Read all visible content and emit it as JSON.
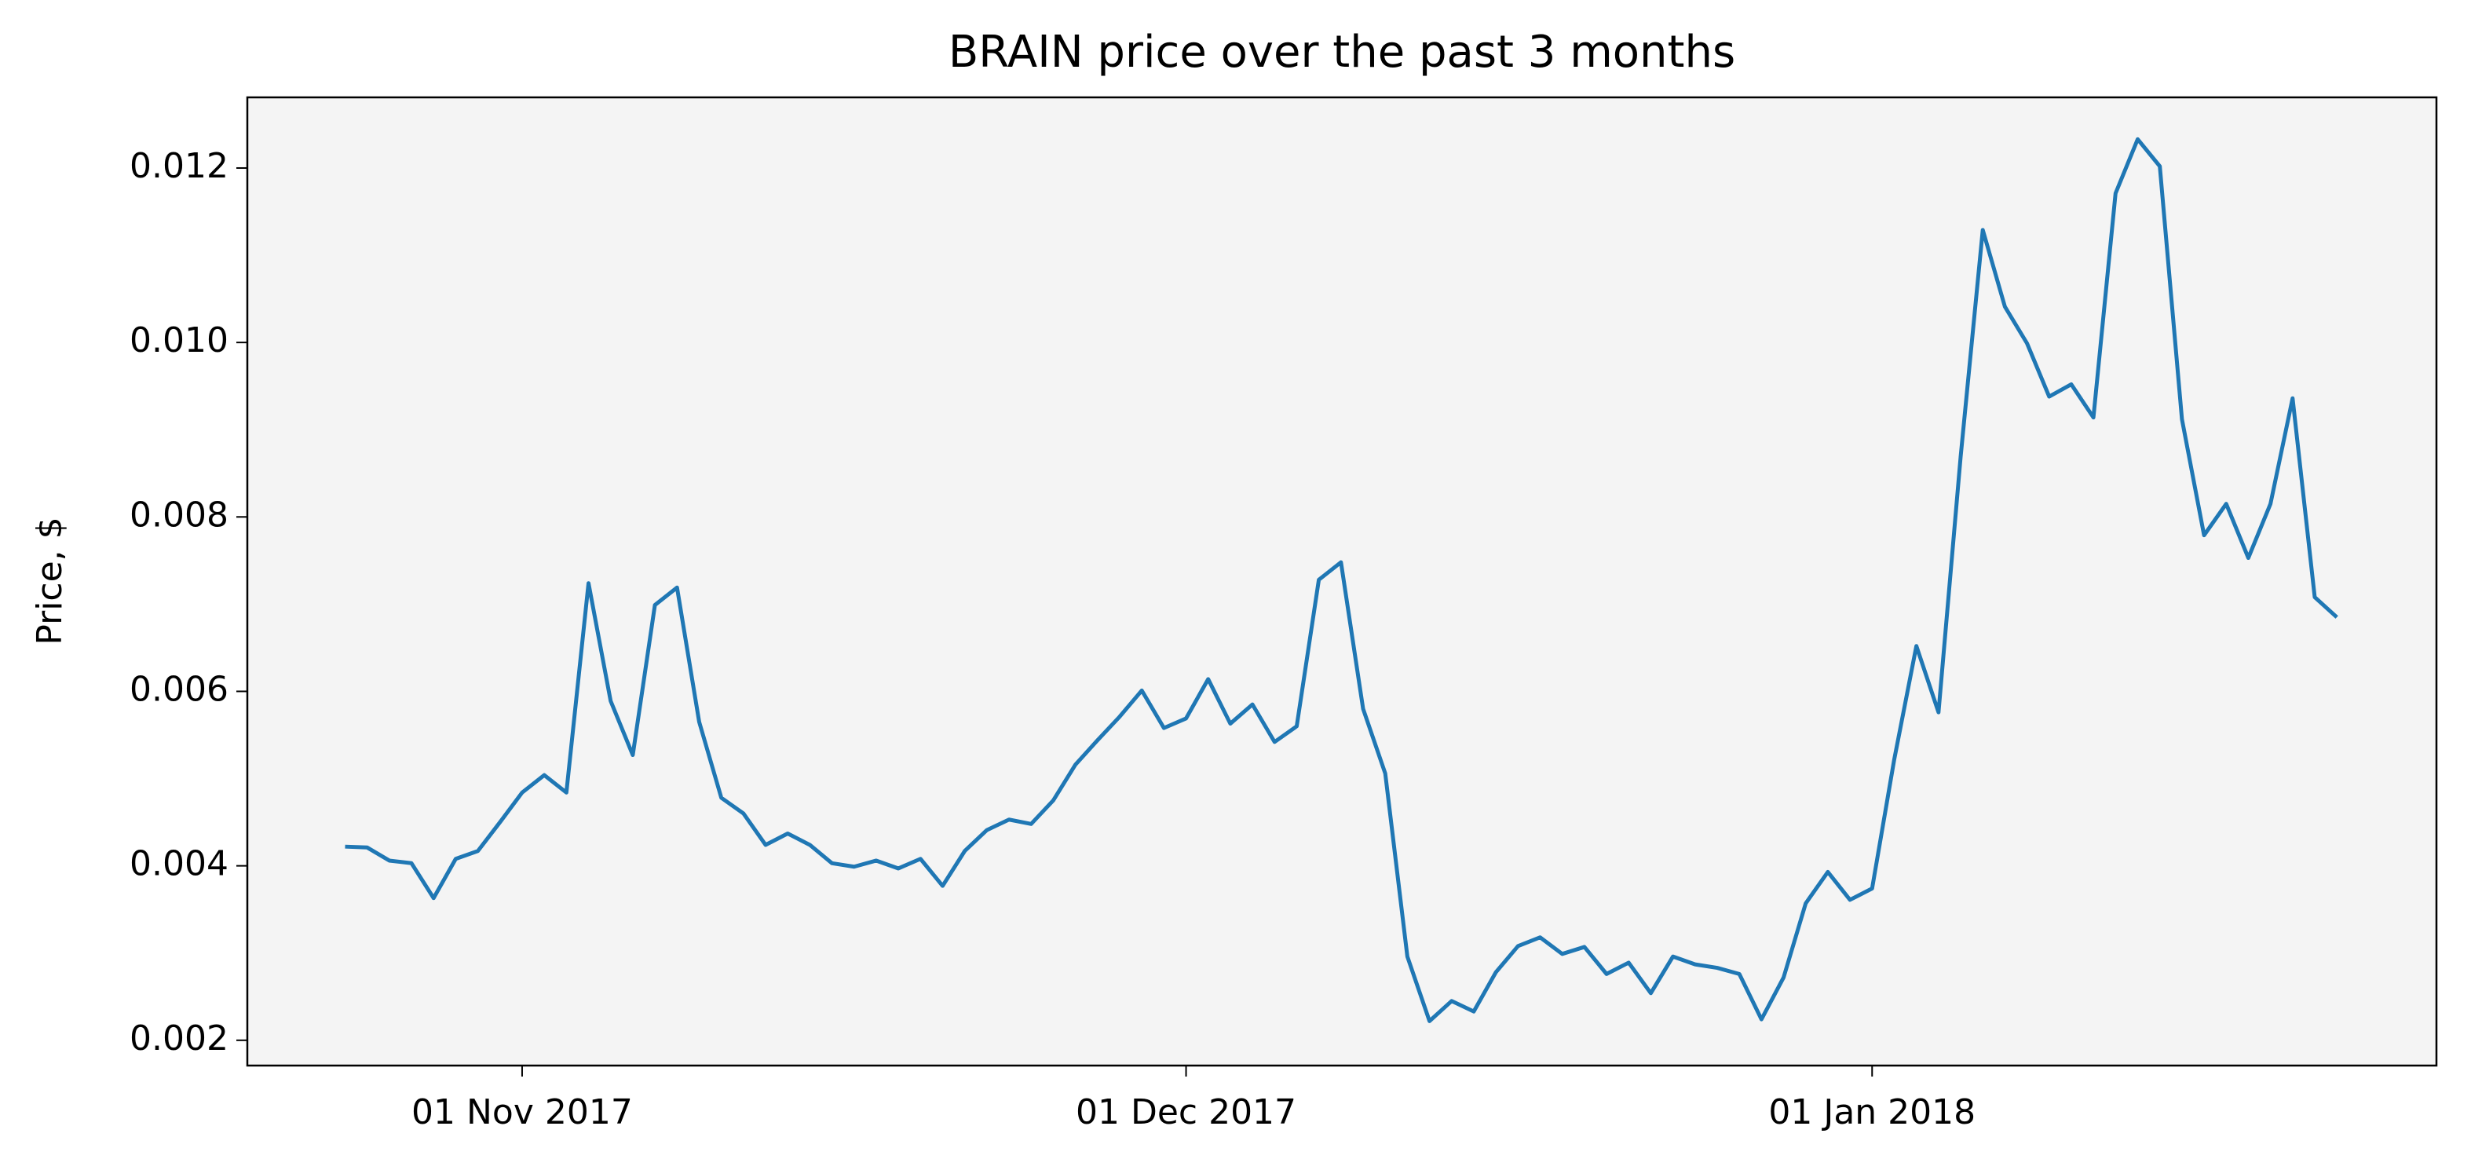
{
  "chart_data": {
    "type": "line",
    "title": "BRAIN price over the past 3 months",
    "ylabel": "Price, $",
    "x": [
      "2017-10-24",
      "2017-10-25",
      "2017-10-26",
      "2017-10-27",
      "2017-10-28",
      "2017-10-29",
      "2017-10-30",
      "2017-10-31",
      "2017-11-01",
      "2017-11-02",
      "2017-11-03",
      "2017-11-04",
      "2017-11-05",
      "2017-11-06",
      "2017-11-07",
      "2017-11-08",
      "2017-11-09",
      "2017-11-10",
      "2017-11-11",
      "2017-11-12",
      "2017-11-13",
      "2017-11-14",
      "2017-11-15",
      "2017-11-16",
      "2017-11-17",
      "2017-11-18",
      "2017-11-19",
      "2017-11-20",
      "2017-11-21",
      "2017-11-22",
      "2017-11-23",
      "2017-11-24",
      "2017-11-25",
      "2017-11-26",
      "2017-11-27",
      "2017-11-28",
      "2017-11-29",
      "2017-11-30",
      "2017-12-01",
      "2017-12-02",
      "2017-12-03",
      "2017-12-04",
      "2017-12-05",
      "2017-12-06",
      "2017-12-07",
      "2017-12-08",
      "2017-12-09",
      "2017-12-10",
      "2017-12-11",
      "2017-12-12",
      "2017-12-13",
      "2017-12-14",
      "2017-12-15",
      "2017-12-16",
      "2017-12-17",
      "2017-12-18",
      "2017-12-19",
      "2017-12-20",
      "2017-12-21",
      "2017-12-22",
      "2017-12-23",
      "2017-12-24",
      "2017-12-25",
      "2017-12-26",
      "2017-12-27",
      "2017-12-28",
      "2017-12-29",
      "2017-12-30",
      "2017-12-31",
      "2018-01-01",
      "2018-01-02",
      "2018-01-03",
      "2018-01-04",
      "2018-01-05",
      "2018-01-06",
      "2018-01-07",
      "2018-01-08",
      "2018-01-09",
      "2018-01-10",
      "2018-01-11",
      "2018-01-12",
      "2018-01-13",
      "2018-01-14",
      "2018-01-15",
      "2018-01-16",
      "2018-01-17",
      "2018-01-18",
      "2018-01-19",
      "2018-01-20",
      "2018-01-21",
      "2018-01-22"
    ],
    "series": [
      {
        "name": "BRAIN",
        "color": "#1f77b4",
        "values": [
          0.00422,
          0.00421,
          0.00406,
          0.00403,
          0.00363,
          0.00408,
          0.00417,
          0.0045,
          0.00484,
          0.00504,
          0.00484,
          0.00724,
          0.00589,
          0.00527,
          0.00699,
          0.00719,
          0.00565,
          0.00478,
          0.0046,
          0.00424,
          0.00437,
          0.00424,
          0.00403,
          0.00399,
          0.00406,
          0.00397,
          0.00408,
          0.00377,
          0.00417,
          0.00441,
          0.00453,
          0.00448,
          0.00475,
          0.00516,
          0.00544,
          0.00571,
          0.00601,
          0.00558,
          0.00569,
          0.00614,
          0.00563,
          0.00585,
          0.00542,
          0.0056,
          0.00728,
          0.00748,
          0.0058,
          0.00506,
          0.00296,
          0.00222,
          0.00245,
          0.00233,
          0.00278,
          0.00308,
          0.00318,
          0.00299,
          0.00307,
          0.00276,
          0.00289,
          0.00254,
          0.00296,
          0.00287,
          0.00283,
          0.00276,
          0.00224,
          0.00272,
          0.00357,
          0.00393,
          0.00361,
          0.00374,
          0.00522,
          0.00652,
          0.00576,
          0.00869,
          0.01129,
          0.01041,
          0.00999,
          0.00938,
          0.00952,
          0.00914,
          0.01171,
          0.01233,
          0.01202,
          0.00912,
          0.00779,
          0.00815,
          0.00753,
          0.00815,
          0.00936,
          0.00708,
          0.00685
        ]
      }
    ],
    "xlim": [
      "2017-10-19T14:00",
      "2018-01-26T12:00"
    ],
    "xticks": [
      {
        "value": "2017-11-01",
        "label": "01 Nov 2017"
      },
      {
        "value": "2017-12-01",
        "label": "01 Dec 2017"
      },
      {
        "value": "2018-01-01",
        "label": "01 Jan 2018"
      }
    ],
    "ylim": [
      0.00171,
      0.01281
    ],
    "yticks": [
      0.002,
      0.004,
      0.006,
      0.008,
      {
        "value": 0.01,
        "label": "0.010"
      },
      0.012
    ],
    "background": "#f4f4f4"
  }
}
